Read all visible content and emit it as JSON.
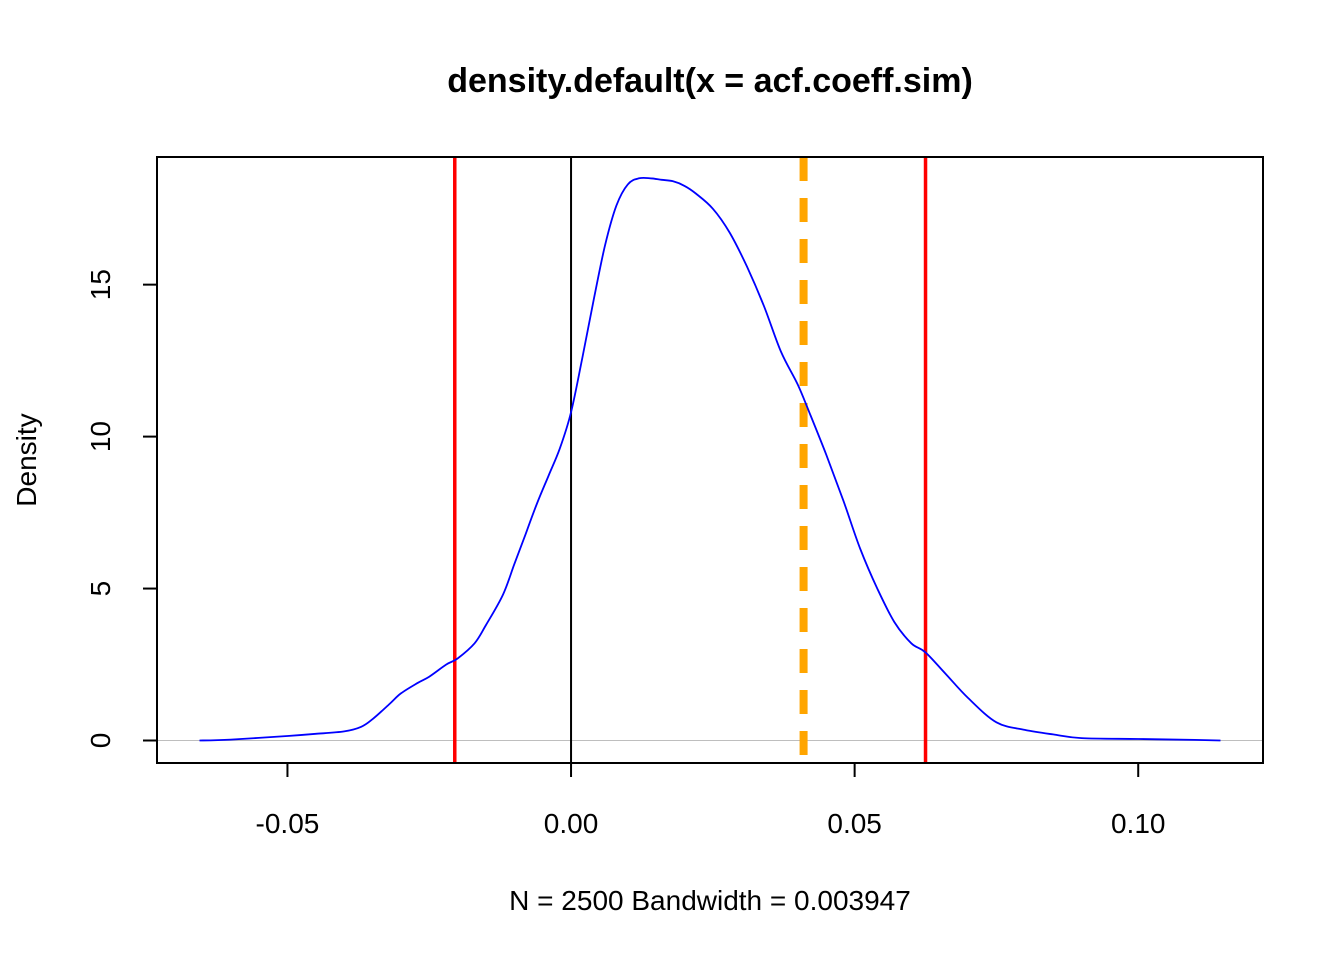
{
  "chart_data": {
    "type": "line",
    "title": "density.default(x = acf.coeff.sim)",
    "xlabel": "N = 2500   Bandwidth = 0.003947",
    "ylabel": "Density",
    "xlim": [
      -0.073,
      0.122
    ],
    "ylim": [
      -0.74,
      19.2
    ],
    "x_ticks": [
      -0.05,
      0.0,
      0.05,
      0.1
    ],
    "x_tick_labels": [
      "-0.05",
      "0.00",
      "0.05",
      "0.10"
    ],
    "y_ticks": [
      0,
      5,
      10,
      15
    ],
    "y_tick_labels": [
      "0",
      "5",
      "10",
      "15"
    ],
    "grid": false,
    "legend": "none",
    "series": [
      {
        "color": "#0000ff",
        "x": [
          -0.0655,
          -0.06,
          -0.05,
          -0.045,
          -0.04,
          -0.037,
          -0.035,
          -0.032,
          -0.03,
          -0.027,
          -0.025,
          -0.022,
          -0.02,
          -0.017,
          -0.015,
          -0.012,
          -0.01,
          -0.008,
          -0.006,
          -0.004,
          -0.002,
          0.0,
          0.002,
          0.004,
          0.006,
          0.008,
          0.01,
          0.012,
          0.014,
          0.016,
          0.018,
          0.02,
          0.022,
          0.025,
          0.028,
          0.031,
          0.034,
          0.037,
          0.04,
          0.042,
          0.045,
          0.048,
          0.051,
          0.054,
          0.057,
          0.06,
          0.0625,
          0.066,
          0.07,
          0.075,
          0.08,
          0.085,
          0.09,
          0.1,
          0.11,
          0.1145
        ],
        "y": [
          0.0,
          0.03,
          0.15,
          0.22,
          0.3,
          0.45,
          0.7,
          1.2,
          1.55,
          1.9,
          2.1,
          2.5,
          2.7,
          3.2,
          3.8,
          4.8,
          5.8,
          6.8,
          7.8,
          8.7,
          9.6,
          10.8,
          12.6,
          14.5,
          16.3,
          17.6,
          18.3,
          18.5,
          18.5,
          18.45,
          18.4,
          18.25,
          18.0,
          17.5,
          16.7,
          15.6,
          14.3,
          12.8,
          11.7,
          10.8,
          9.4,
          7.9,
          6.3,
          5.0,
          3.9,
          3.2,
          2.9,
          2.2,
          1.4,
          0.6,
          0.35,
          0.2,
          0.08,
          0.05,
          0.02,
          0.0
        ]
      }
    ],
    "reference_lines": [
      {
        "orientation": "horizontal",
        "y": 0,
        "color": "#bebebe",
        "style": "solid"
      },
      {
        "orientation": "vertical",
        "x": 0.0,
        "color": "#000000",
        "style": "solid"
      },
      {
        "orientation": "vertical",
        "x": -0.0205,
        "color": "#ff0000",
        "style": "solid"
      },
      {
        "orientation": "vertical",
        "x": 0.0625,
        "color": "#ff0000",
        "style": "solid"
      },
      {
        "orientation": "vertical",
        "x": 0.041,
        "color": "#ffa500",
        "style": "dashed"
      }
    ]
  }
}
